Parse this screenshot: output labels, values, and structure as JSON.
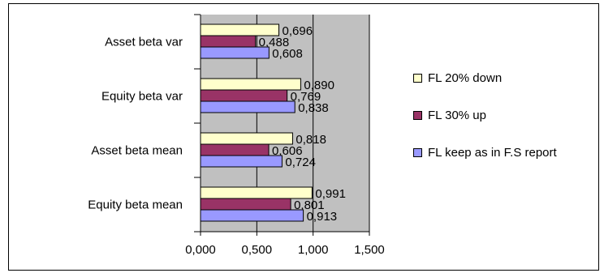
{
  "chart_data": {
    "type": "bar",
    "orientation": "horizontal",
    "categories": [
      "Asset beta var",
      "Equity beta var",
      "Asset beta mean",
      "Equity beta mean"
    ],
    "series": [
      {
        "name": "FL 20% down",
        "color": "#ffffcc",
        "values": [
          0.696,
          0.89,
          0.818,
          0.991
        ],
        "labels": [
          "0,696",
          "0,890",
          "0,818",
          "0,991"
        ]
      },
      {
        "name": "FL 30% up",
        "color": "#993366",
        "values": [
          0.488,
          0.769,
          0.606,
          0.801
        ],
        "labels": [
          "0,488",
          "0,769",
          "0,606",
          "0,801"
        ]
      },
      {
        "name": "FL keep as in F.S report",
        "color": "#9999ff",
        "values": [
          0.608,
          0.838,
          0.724,
          0.913
        ],
        "labels": [
          "0,608",
          "0,838",
          "0,724",
          "0,913"
        ]
      }
    ],
    "xticks": [
      "0,000",
      "0,500",
      "1,000",
      "1,500"
    ],
    "xlim": [
      0,
      1.5
    ],
    "plot_background": "#c0c0c0",
    "grid": "vertical",
    "legend_position": "right"
  }
}
